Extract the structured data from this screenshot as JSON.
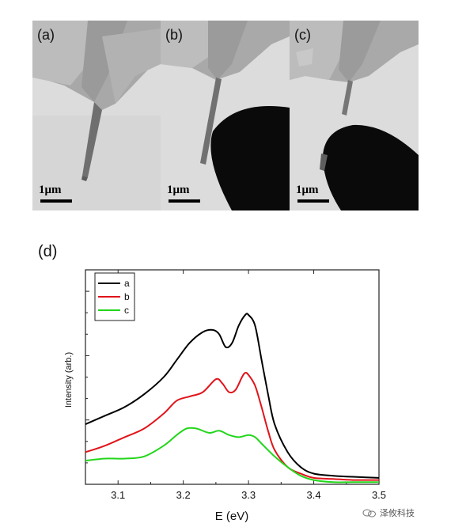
{
  "figure": {
    "panels": [
      {
        "label": "(a)",
        "scale_label": "1μm",
        "probe": false
      },
      {
        "label": "(b)",
        "scale_label": "1μm",
        "probe": true
      },
      {
        "label": "(c)",
        "scale_label": "1μm",
        "probe": true
      }
    ],
    "spectrum_label": "(d)"
  },
  "chart_data": {
    "type": "line",
    "xlabel": "E (eV)",
    "ylabel": "Intensity (arb.)",
    "xlim": [
      3.05,
      3.5
    ],
    "ylim": [
      0,
      1
    ],
    "x_ticks": [
      "3.1",
      "3.2",
      "3.3",
      "3.4",
      "3.5"
    ],
    "grid": false,
    "legend_position": "top-left",
    "series": [
      {
        "name": "a",
        "color": "#000000",
        "x": [
          3.05,
          3.08,
          3.11,
          3.14,
          3.17,
          3.19,
          3.21,
          3.23,
          3.245,
          3.255,
          3.265,
          3.275,
          3.285,
          3.295,
          3.3,
          3.31,
          3.32,
          3.33,
          3.34,
          3.36,
          3.38,
          3.4,
          3.43,
          3.46,
          3.5
        ],
        "y": [
          0.28,
          0.32,
          0.36,
          0.42,
          0.5,
          0.58,
          0.66,
          0.71,
          0.72,
          0.7,
          0.64,
          0.66,
          0.74,
          0.79,
          0.79,
          0.74,
          0.58,
          0.42,
          0.28,
          0.15,
          0.08,
          0.05,
          0.04,
          0.035,
          0.03
        ]
      },
      {
        "name": "b",
        "color": "#e0141b",
        "x": [
          3.05,
          3.08,
          3.11,
          3.14,
          3.17,
          3.19,
          3.21,
          3.23,
          3.25,
          3.26,
          3.27,
          3.28,
          3.29,
          3.295,
          3.3,
          3.31,
          3.32,
          3.33,
          3.34,
          3.36,
          3.38,
          3.4,
          3.43,
          3.46,
          3.5
        ],
        "y": [
          0.15,
          0.18,
          0.22,
          0.26,
          0.33,
          0.39,
          0.41,
          0.43,
          0.49,
          0.47,
          0.43,
          0.44,
          0.5,
          0.52,
          0.51,
          0.46,
          0.36,
          0.25,
          0.16,
          0.08,
          0.05,
          0.03,
          0.025,
          0.02,
          0.02
        ]
      },
      {
        "name": "c",
        "color": "#22d61a",
        "x": [
          3.05,
          3.08,
          3.11,
          3.14,
          3.17,
          3.19,
          3.205,
          3.22,
          3.24,
          3.255,
          3.27,
          3.285,
          3.3,
          3.31,
          3.32,
          3.34,
          3.36,
          3.38,
          3.4,
          3.43,
          3.46,
          3.5
        ],
        "y": [
          0.11,
          0.12,
          0.12,
          0.13,
          0.18,
          0.23,
          0.26,
          0.26,
          0.24,
          0.25,
          0.23,
          0.22,
          0.23,
          0.22,
          0.19,
          0.13,
          0.08,
          0.04,
          0.02,
          0.01,
          0.01,
          0.01
        ]
      }
    ]
  },
  "watermark": {
    "text": "泽攸科技",
    "icon": "wechat-icon"
  }
}
